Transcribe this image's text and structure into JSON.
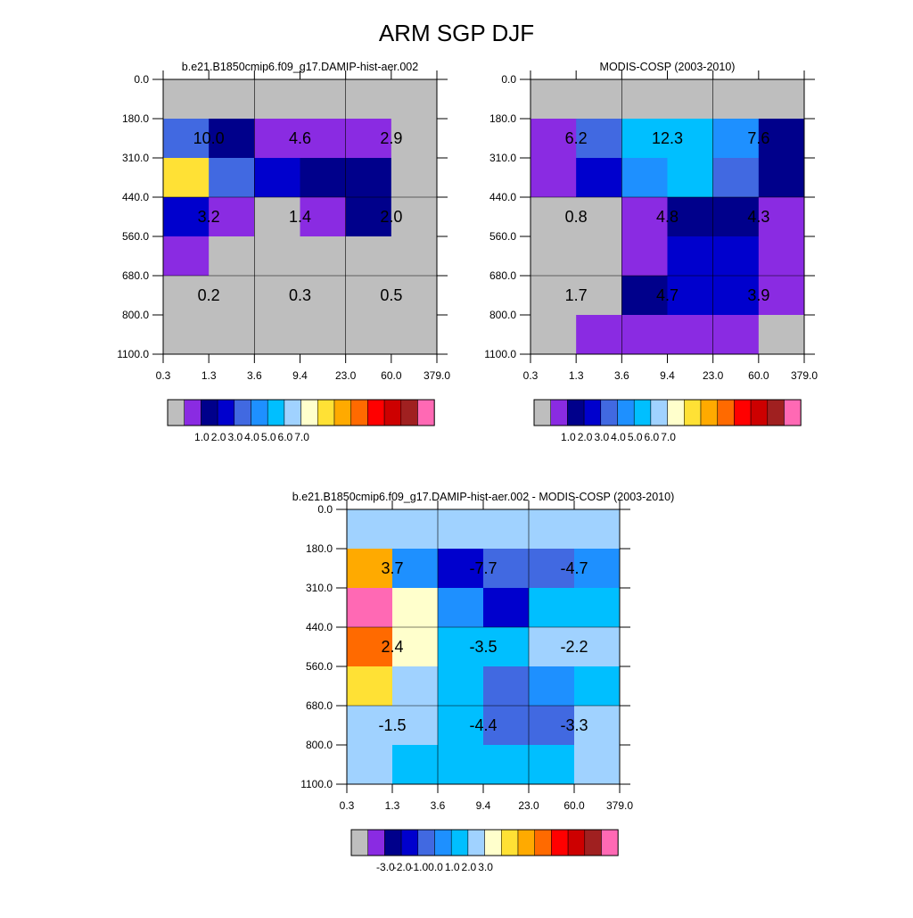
{
  "title": "ARM SGP DJF",
  "colors": {
    "missing": "#bebebe",
    "abs_palette": [
      "#bebebe",
      "#8a2be2",
      "#00008b",
      "#0000cd",
      "#4169e1",
      "#1e90ff",
      "#00bfff",
      "#a0d2ff",
      "#ffffcc",
      "#ffe135",
      "#ffaa00",
      "#ff6a00",
      "#ff0000",
      "#cd0000",
      "#a02020",
      "#ff69b4"
    ],
    "diff_palette": [
      "#bebebe",
      "#8a2be2",
      "#00008b",
      "#0000cd",
      "#4169e1",
      "#1e90ff",
      "#00bfff",
      "#a0d2ff",
      "#ffffcc",
      "#ffe135",
      "#ffaa00",
      "#ff6a00",
      "#ff0000",
      "#cd0000",
      "#a02020",
      "#ff69b4"
    ]
  },
  "chart_data": [
    {
      "type": "heatmap",
      "title": "b.e21.B1850cmip6.f09_g17.DAMIP-hist-aer.002",
      "x_ticks": [
        "0.3",
        "1.3",
        "3.6",
        "9.4",
        "23.0",
        "60.0",
        "379.0"
      ],
      "y_ticks": [
        "0.0",
        "180.0",
        "310.0",
        "440.0",
        "560.0",
        "680.0",
        "800.0",
        "1100.0"
      ],
      "cells": [
        [
          0,
          0,
          0,
          0,
          0,
          0
        ],
        [
          4,
          2,
          1,
          1,
          1,
          0
        ],
        [
          9,
          4,
          3,
          2,
          2,
          0
        ],
        [
          3,
          1,
          0,
          1,
          2,
          0
        ],
        [
          1,
          0,
          0,
          0,
          0,
          0
        ],
        [
          0,
          0,
          0,
          0,
          0,
          0
        ],
        [
          0,
          0,
          0,
          0,
          0,
          0
        ]
      ],
      "cell_labels": [
        {
          "row": 1,
          "col": 1,
          "text": "10.0"
        },
        {
          "row": 1,
          "col": 3,
          "text": "4.6"
        },
        {
          "row": 1,
          "col": 5,
          "text": "2.9"
        },
        {
          "row": 3,
          "col": 1,
          "text": "3.2"
        },
        {
          "row": 3,
          "col": 3,
          "text": "1.4"
        },
        {
          "row": 3,
          "col": 5,
          "text": "2.0"
        },
        {
          "row": 5,
          "col": 1,
          "text": "0.2"
        },
        {
          "row": 5,
          "col": 3,
          "text": "0.3"
        },
        {
          "row": 5,
          "col": 5,
          "text": "0.5"
        }
      ],
      "colorbar_labels": [
        "1.0",
        "2.0",
        "3.0",
        "4.0",
        "5.0",
        "6.0",
        "7.0"
      ]
    },
    {
      "type": "heatmap",
      "title": "MODIS-COSP (2003-2010)",
      "x_ticks": [
        "0.3",
        "1.3",
        "3.6",
        "9.4",
        "23.0",
        "60.0",
        "379.0"
      ],
      "y_ticks": [
        "0.0",
        "180.0",
        "310.0",
        "440.0",
        "560.0",
        "680.0",
        "800.0",
        "1100.0"
      ],
      "cells": [
        [
          0,
          0,
          0,
          0,
          0,
          0
        ],
        [
          1,
          4,
          6,
          6,
          5,
          2
        ],
        [
          1,
          3,
          5,
          6,
          4,
          2
        ],
        [
          0,
          0,
          1,
          2,
          2,
          1
        ],
        [
          0,
          0,
          1,
          3,
          3,
          1
        ],
        [
          0,
          0,
          2,
          3,
          3,
          1
        ],
        [
          0,
          1,
          1,
          1,
          1,
          0
        ]
      ],
      "cell_labels": [
        {
          "row": 1,
          "col": 1,
          "text": "6.2"
        },
        {
          "row": 1,
          "col": 3,
          "text": "12.3"
        },
        {
          "row": 1,
          "col": 5,
          "text": "7.6"
        },
        {
          "row": 3,
          "col": 1,
          "text": "0.8"
        },
        {
          "row": 3,
          "col": 3,
          "text": "4.8"
        },
        {
          "row": 3,
          "col": 5,
          "text": "4.3"
        },
        {
          "row": 5,
          "col": 1,
          "text": "1.7"
        },
        {
          "row": 5,
          "col": 3,
          "text": "4.7"
        },
        {
          "row": 5,
          "col": 5,
          "text": "3.9"
        }
      ],
      "colorbar_labels": [
        "1.0",
        "2.0",
        "3.0",
        "4.0",
        "5.0",
        "6.0",
        "7.0"
      ]
    },
    {
      "type": "heatmap",
      "title": "b.e21.B1850cmip6.f09_g17.DAMIP-hist-aer.002 - MODIS-COSP (2003-2010)",
      "x_ticks": [
        "0.3",
        "1.3",
        "3.6",
        "9.4",
        "23.0",
        "60.0",
        "379.0"
      ],
      "y_ticks": [
        "0.0",
        "180.0",
        "310.0",
        "440.0",
        "560.0",
        "680.0",
        "800.0",
        "1100.0"
      ],
      "cells": [
        [
          7,
          7,
          7,
          7,
          7,
          7
        ],
        [
          10,
          5,
          3,
          4,
          4,
          5
        ],
        [
          15,
          8,
          5,
          3,
          6,
          6
        ],
        [
          11,
          8,
          6,
          6,
          7,
          7
        ],
        [
          9,
          7,
          6,
          4,
          5,
          6
        ],
        [
          7,
          7,
          6,
          4,
          4,
          7
        ],
        [
          7,
          6,
          6,
          6,
          6,
          7
        ]
      ],
      "cell_labels": [
        {
          "row": 1,
          "col": 1,
          "text": "3.7"
        },
        {
          "row": 1,
          "col": 3,
          "text": "-7.7"
        },
        {
          "row": 1,
          "col": 5,
          "text": "-4.7"
        },
        {
          "row": 3,
          "col": 1,
          "text": "2.4"
        },
        {
          "row": 3,
          "col": 3,
          "text": "-3.5"
        },
        {
          "row": 3,
          "col": 5,
          "text": "-2.2"
        },
        {
          "row": 5,
          "col": 1,
          "text": "-1.5"
        },
        {
          "row": 5,
          "col": 3,
          "text": "-4.4"
        },
        {
          "row": 5,
          "col": 5,
          "text": "-3.3"
        }
      ],
      "colorbar_labels": [
        "-3.0",
        "-2.0",
        "-1.0",
        "0.0",
        "1.0",
        "2.0",
        "3.0"
      ]
    }
  ]
}
